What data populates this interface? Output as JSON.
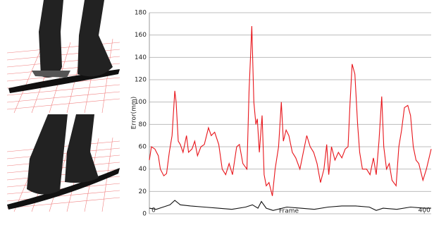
{
  "chart_data": {
    "type": "line",
    "y_label": "Error(mm)",
    "x_label": "Frame",
    "xlim": [
      0,
      410
    ],
    "xticks": [
      0,
      400
    ],
    "ylim": [
      0,
      180
    ],
    "yticks": [
      0,
      20,
      40,
      60,
      80,
      100,
      120,
      140,
      160,
      180
    ],
    "grid": true,
    "series": [
      {
        "color": "#e8141a",
        "x": [
          0,
          3,
          8,
          13,
          16,
          21,
          25,
          29,
          33,
          37,
          39,
          42,
          45,
          49,
          54,
          57,
          62,
          66,
          70,
          75,
          80,
          86,
          90,
          95,
          101,
          106,
          111,
          116,
          121,
          127,
          131,
          136,
          142,
          145,
          149,
          152,
          155,
          157,
          160,
          164,
          167,
          170,
          174,
          179,
          183,
          188,
          192,
          195,
          199,
          203,
          208,
          213,
          219,
          224,
          229,
          234,
          239,
          244,
          249,
          254,
          258,
          261,
          265,
          270,
          275,
          280,
          285,
          289,
          292,
          295,
          299,
          303,
          306,
          310,
          316,
          321,
          326,
          330,
          334,
          338,
          341,
          345,
          349,
          353,
          359,
          363,
          367,
          371,
          376,
          380,
          384,
          388,
          392,
          398,
          403,
          410
        ],
        "values": [
          48,
          60,
          58,
          52,
          40,
          34,
          36,
          55,
          70,
          110,
          100,
          65,
          62,
          55,
          70,
          55,
          58,
          65,
          52,
          60,
          62,
          77,
          70,
          73,
          62,
          40,
          35,
          45,
          35,
          60,
          62,
          45,
          40,
          110,
          168,
          100,
          80,
          85,
          55,
          88,
          35,
          25,
          28,
          16,
          40,
          60,
          100,
          65,
          75,
          70,
          55,
          50,
          40,
          55,
          70,
          60,
          55,
          45,
          28,
          40,
          62,
          35,
          60,
          48,
          55,
          50,
          58,
          60,
          100,
          134,
          125,
          80,
          55,
          40,
          40,
          35,
          50,
          35,
          65,
          105,
          60,
          40,
          45,
          30,
          25,
          60,
          75,
          95,
          97,
          88,
          60,
          48,
          45,
          30,
          40,
          58
        ]
      },
      {
        "color": "#111111",
        "x": [
          0,
          10,
          20,
          30,
          37,
          45,
          60,
          80,
          100,
          120,
          140,
          150,
          158,
          163,
          170,
          180,
          200,
          220,
          240,
          260,
          280,
          300,
          320,
          330,
          340,
          360,
          380,
          400,
          410
        ],
        "values": [
          5,
          4,
          6,
          8,
          12,
          8,
          7,
          6,
          5,
          4,
          6,
          8,
          5,
          11,
          5,
          3,
          6,
          5,
          4,
          6,
          7,
          7,
          6,
          3,
          5,
          4,
          6,
          5,
          5
        ]
      }
    ]
  }
}
